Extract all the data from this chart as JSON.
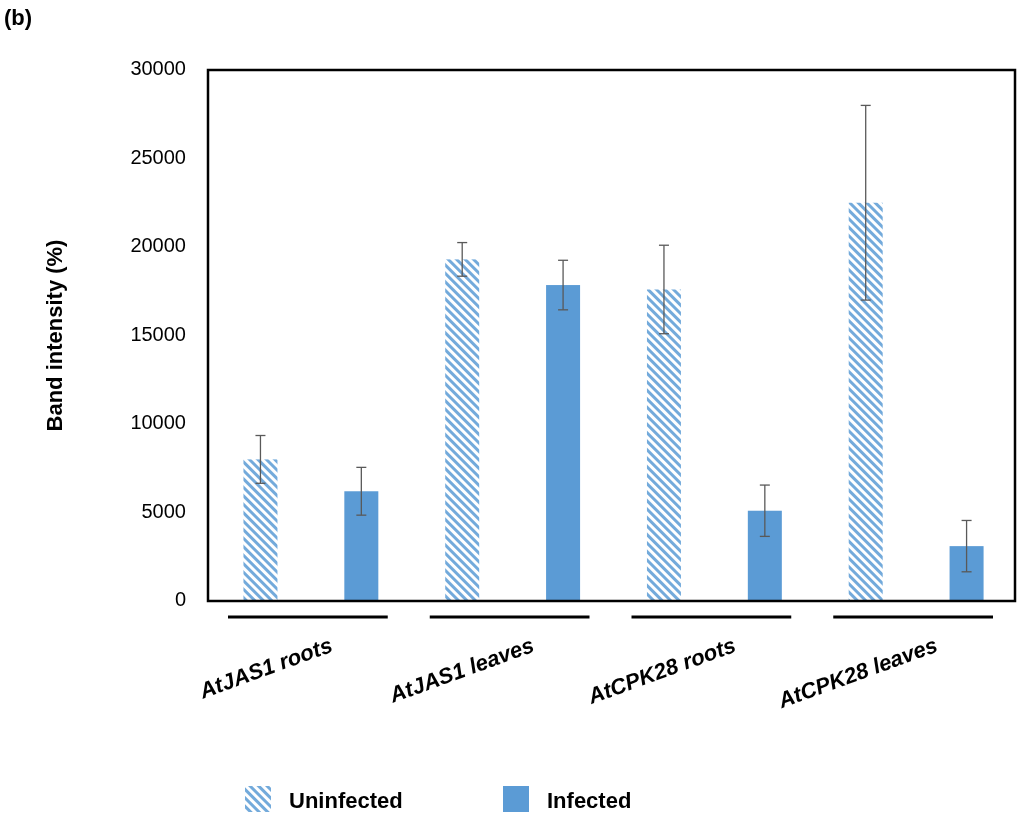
{
  "chart_data": {
    "type": "bar",
    "ylabel": "Band intensity (%)",
    "annotations": [
      "(b)"
    ],
    "categories": [
      "AtJAS1 roots",
      "AtJAS1 leaves",
      "AtCPK28 roots",
      "AtCPK28 leaves"
    ],
    "series": [
      {
        "name": "Uninfected",
        "color": "#5b9bd5",
        "values": [
          8000,
          19300,
          17600,
          22500
        ],
        "errors": [
          1350,
          950,
          2500,
          5500
        ]
      },
      {
        "name": "Infected",
        "color": "#5b9bd5",
        "values": [
          6200,
          17850,
          5100,
          3100
        ],
        "errors": [
          1350,
          1400,
          1450,
          1450
        ]
      }
    ],
    "ylim": [
      0,
      30000
    ],
    "yticks": [
      0,
      5000,
      10000,
      15000,
      20000,
      25000,
      30000
    ],
    "legend": "bottom"
  }
}
